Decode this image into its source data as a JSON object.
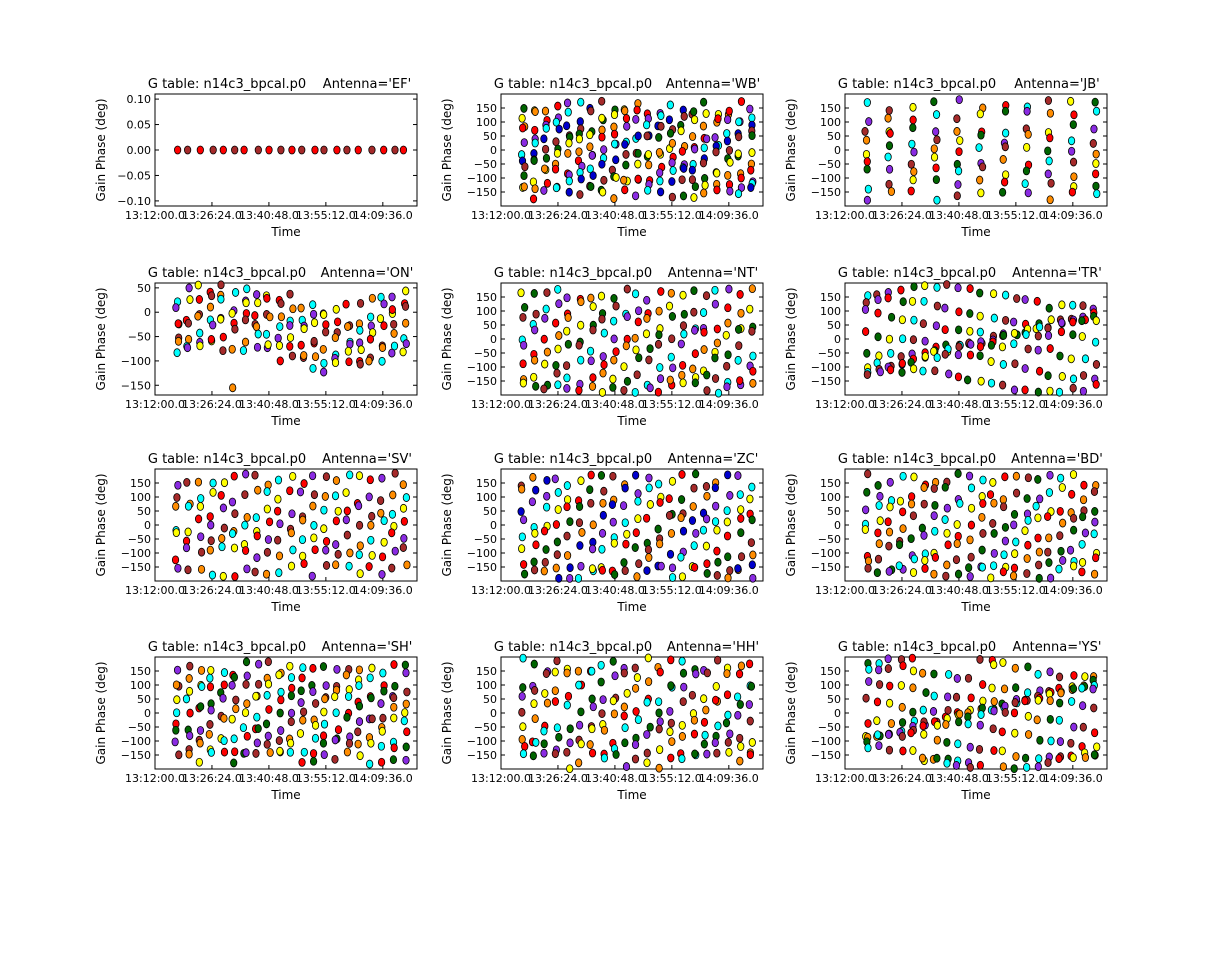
{
  "figure": {
    "time_ticks": [
      "13:12:00.0",
      "13:26:24.0",
      "13:40:48.0",
      "13:55:12.0",
      "14:09:36.0"
    ],
    "xlabel": "Time",
    "ylabel": "Gain Phase (deg)",
    "title_prefix": "G table: n14c3_bpcal.p0",
    "series_colors": {
      "red": "#ff0000",
      "brown": "#a52a2a",
      "orange": "#ff8c00",
      "yellow": "#ffff00",
      "cyan": "#00ffff",
      "purple": "#8a2be2",
      "green": "#006400",
      "blue": "#0000cd"
    }
  },
  "chart_data": [
    {
      "type": "scatter",
      "antenna_label": "Antenna='EF'",
      "title": "G table: n14c3_bpcal.p0",
      "xlabel": "Time",
      "ylabel": "Gain Phase (deg)",
      "ylim": [
        -0.11,
        0.11
      ],
      "yticks": [
        -0.1,
        -0.05,
        0.0,
        0.05,
        0.1
      ],
      "ytick_labels": [
        "−0.10",
        "−0.05",
        "0.00",
        "0.05",
        "0.10"
      ],
      "pattern": "flat",
      "colors": [
        "red",
        "brown"
      ],
      "values": [
        0
      ]
    },
    {
      "type": "scatter",
      "antenna_label": "Antenna='WB'",
      "title": "G table: n14c3_bpcal.p0",
      "xlabel": "Time",
      "ylabel": "Gain Phase (deg)",
      "ylim": [
        -200,
        200
      ],
      "yticks": [
        -150,
        -100,
        -50,
        0,
        50,
        100,
        150
      ],
      "ytick_labels": [
        "−150",
        "−100",
        "−50",
        "0",
        "50",
        "100",
        "150"
      ],
      "pattern": "scatter",
      "colors": [
        "green",
        "yellow",
        "orange",
        "red",
        "purple",
        "cyan",
        "blue",
        "brown"
      ],
      "values": [
        150,
        120,
        90,
        60,
        30,
        0,
        -30,
        -60,
        -90,
        -120,
        -150
      ]
    },
    {
      "type": "scatter",
      "antenna_label": "Antenna='JB'",
      "title": "G table: n14c3_bpcal.p0",
      "xlabel": "Time",
      "ylabel": "Gain Phase (deg)",
      "ylim": [
        -200,
        200
      ],
      "yticks": [
        -150,
        -100,
        -50,
        0,
        50,
        100,
        150
      ],
      "ytick_labels": [
        "−150",
        "−100",
        "−50",
        "0",
        "50",
        "100",
        "150"
      ],
      "pattern": "sparse",
      "colors": [
        "cyan",
        "purple",
        "brown",
        "orange",
        "yellow",
        "red",
        "green"
      ],
      "values": [
        160,
        120,
        80,
        40,
        0,
        -40,
        -80,
        -120,
        -160
      ]
    },
    {
      "type": "scatter",
      "antenna_label": "Antenna='ON'",
      "title": "G table: n14c3_bpcal.p0",
      "xlabel": "Time",
      "ylabel": "Gain Phase (deg)",
      "ylim": [
        -170,
        60
      ],
      "yticks": [
        -150,
        -100,
        -50,
        0,
        50
      ],
      "ytick_labels": [
        "−150",
        "−100",
        "−50",
        "0",
        "50"
      ],
      "pattern": "band",
      "colors": [
        "cyan",
        "purple",
        "yellow",
        "red",
        "brown",
        "orange"
      ],
      "values": [
        30,
        10,
        -10,
        -30,
        -50,
        -70,
        -90
      ]
    },
    {
      "type": "scatter",
      "antenna_label": "Antenna='NT'",
      "title": "G table: n14c3_bpcal.p0",
      "xlabel": "Time",
      "ylabel": "Gain Phase (deg)",
      "ylim": [
        -200,
        200
      ],
      "yticks": [
        -150,
        -100,
        -50,
        0,
        50,
        100,
        150
      ],
      "ytick_labels": [
        "−150",
        "−100",
        "−50",
        "0",
        "50",
        "100",
        "150"
      ],
      "pattern": "scatter",
      "colors": [
        "yellow",
        "green",
        "brown",
        "cyan",
        "purple",
        "red",
        "orange"
      ],
      "values": [
        160,
        110,
        60,
        10,
        -40,
        -90,
        -140,
        -170
      ]
    },
    {
      "type": "scatter",
      "antenna_label": "Antenna='TR'",
      "title": "G table: n14c3_bpcal.p0",
      "xlabel": "Time",
      "ylabel": "Gain Phase (deg)",
      "ylim": [
        -200,
        200
      ],
      "yticks": [
        -150,
        -100,
        -50,
        0,
        50,
        100,
        150
      ],
      "ytick_labels": [
        "−150",
        "−100",
        "−50",
        "0",
        "50",
        "100",
        "150"
      ],
      "pattern": "wave",
      "colors": [
        "cyan",
        "brown",
        "purple",
        "red",
        "green",
        "yellow"
      ],
      "values": [
        150,
        100,
        60,
        20,
        -20,
        -60,
        -100,
        -150
      ]
    },
    {
      "type": "scatter",
      "antenna_label": "Antenna='SV'",
      "title": "G table: n14c3_bpcal.p0",
      "xlabel": "Time",
      "ylabel": "Gain Phase (deg)",
      "ylim": [
        -200,
        200
      ],
      "yticks": [
        -150,
        -100,
        -50,
        0,
        50,
        100,
        150
      ],
      "ytick_labels": [
        "−150",
        "−100",
        "−50",
        "0",
        "50",
        "100",
        "150"
      ],
      "pattern": "scatter",
      "colors": [
        "purple",
        "brown",
        "orange",
        "cyan",
        "yellow",
        "red"
      ],
      "values": [
        160,
        100,
        50,
        0,
        -50,
        -100,
        -160
      ]
    },
    {
      "type": "scatter",
      "antenna_label": "Antenna='ZC'",
      "title": "G table: n14c3_bpcal.p0",
      "xlabel": "Time",
      "ylabel": "Gain Phase (deg)",
      "ylim": [
        -200,
        200
      ],
      "yticks": [
        -150,
        -100,
        -50,
        0,
        50,
        100,
        150
      ],
      "ytick_labels": [
        "−150",
        "−100",
        "−50",
        "0",
        "50",
        "100",
        "150"
      ],
      "pattern": "scatter",
      "colors": [
        "brown",
        "orange",
        "blue",
        "purple",
        "cyan",
        "yellow",
        "red",
        "green"
      ],
      "values": [
        160,
        110,
        60,
        10,
        -40,
        -90,
        -140,
        -170
      ]
    },
    {
      "type": "scatter",
      "antenna_label": "Antenna='BD'",
      "title": "G table: n14c3_bpcal.p0",
      "xlabel": "Time",
      "ylabel": "Gain Phase (deg)",
      "ylim": [
        -200,
        200
      ],
      "yticks": [
        -150,
        -100,
        -50,
        0,
        50,
        100,
        150
      ],
      "ytick_labels": [
        "−150",
        "−100",
        "−50",
        "0",
        "50",
        "100",
        "150"
      ],
      "pattern": "scatter",
      "colors": [
        "brown",
        "green",
        "purple",
        "cyan",
        "yellow",
        "red",
        "orange"
      ],
      "values": [
        160,
        110,
        60,
        10,
        -40,
        -90,
        -140,
        -170
      ]
    },
    {
      "type": "scatter",
      "antenna_label": "Antenna='SH'",
      "title": "G table: n14c3_bpcal.p0",
      "xlabel": "Time",
      "ylabel": "Gain Phase (deg)",
      "ylim": [
        -200,
        200
      ],
      "yticks": [
        -150,
        -100,
        -50,
        0,
        50,
        100,
        150
      ],
      "ytick_labels": [
        "−150",
        "−100",
        "−50",
        "0",
        "50",
        "100",
        "150"
      ],
      "pattern": "scatter",
      "colors": [
        "purple",
        "brown",
        "orange",
        "yellow",
        "cyan",
        "red",
        "green"
      ],
      "values": [
        160,
        120,
        80,
        40,
        0,
        -40,
        -80,
        -120,
        -160
      ]
    },
    {
      "type": "scatter",
      "antenna_label": "Antenna='HH'",
      "title": "G table: n14c3_bpcal.p0",
      "xlabel": "Time",
      "ylabel": "Gain Phase (deg)",
      "ylim": [
        -200,
        200
      ],
      "yticks": [
        -150,
        -100,
        -50,
        0,
        50,
        100,
        150
      ],
      "ytick_labels": [
        "−150",
        "−100",
        "−50",
        "0",
        "50",
        "100",
        "150"
      ],
      "pattern": "vertical",
      "colors": [
        "cyan",
        "green",
        "purple",
        "brown",
        "yellow",
        "orange",
        "red"
      ],
      "values": [
        170,
        120,
        70,
        20,
        -30,
        -80,
        -130,
        -170
      ]
    },
    {
      "type": "scatter",
      "antenna_label": "Antenna='YS'",
      "title": "G table: n14c3_bpcal.p0",
      "xlabel": "Time",
      "ylabel": "Gain Phase (deg)",
      "ylim": [
        -200,
        200
      ],
      "yticks": [
        -150,
        -100,
        -50,
        0,
        50,
        100,
        150
      ],
      "ytick_labels": [
        "−150",
        "−100",
        "−50",
        "0",
        "50",
        "100",
        "150"
      ],
      "pattern": "wave",
      "colors": [
        "green",
        "cyan",
        "purple",
        "brown",
        "red",
        "yellow",
        "orange"
      ],
      "values": [
        170,
        120,
        80,
        40,
        0,
        -40,
        -80,
        -120,
        -160
      ]
    }
  ]
}
